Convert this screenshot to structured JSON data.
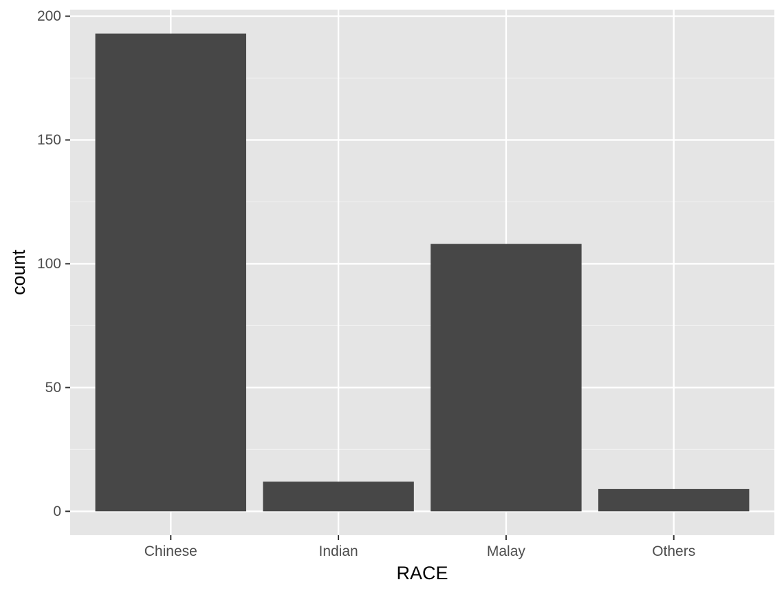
{
  "chart_data": {
    "type": "bar",
    "title": "",
    "xlabel": "RACE",
    "ylabel": "count",
    "categories": [
      "Chinese",
      "Indian",
      "Malay",
      "Others"
    ],
    "values": [
      193,
      12,
      108,
      9
    ],
    "ylim": [
      -9.65,
      202.65
    ],
    "y_ticks": [
      0,
      50,
      100,
      150,
      200
    ],
    "y_tick_labels": [
      "0",
      "50",
      "100",
      "150",
      "200"
    ],
    "grid": true,
    "legend": "none"
  },
  "colors": {
    "panel_background": "#e5e5e5",
    "grid_major": "#ffffff",
    "grid_minor": "#f2f2f2",
    "bar_fill": "#474747",
    "tick_text": "#4d4d4d",
    "tick_mark": "#333333",
    "axis_title": "#000000"
  }
}
